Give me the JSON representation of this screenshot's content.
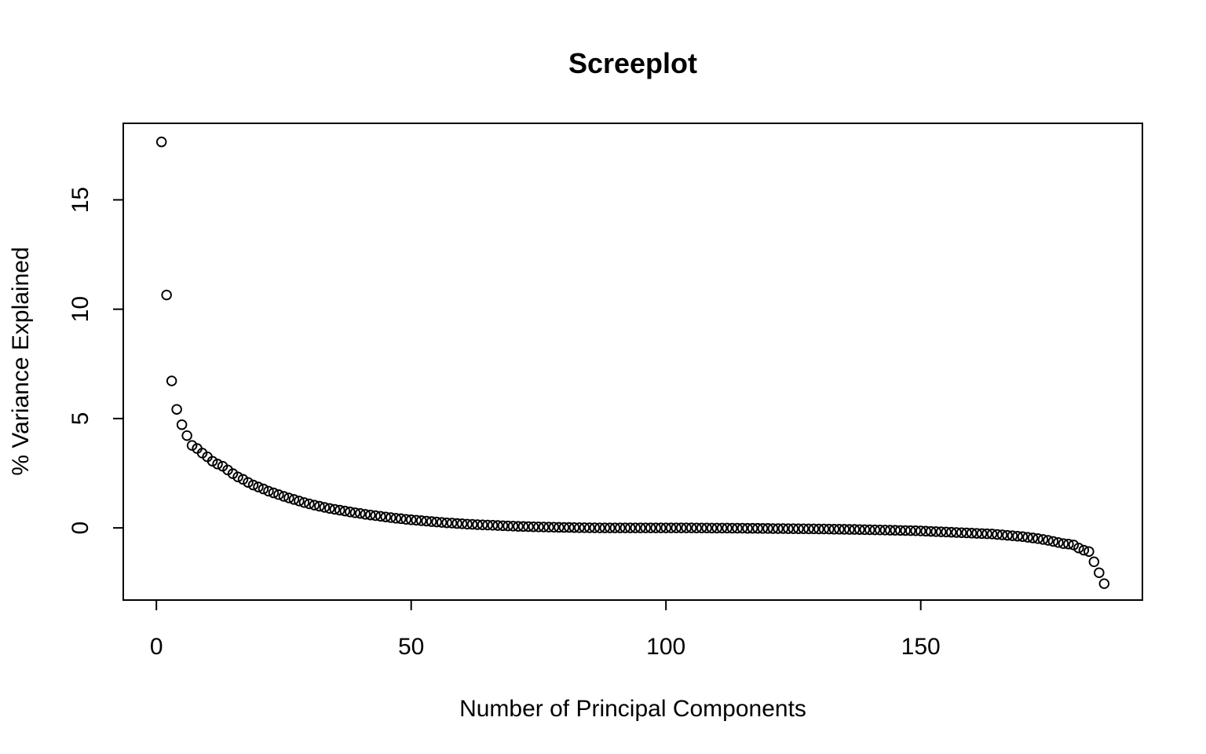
{
  "chart_data": {
    "type": "scatter",
    "title": "Screeplot",
    "xlabel": "Number of Principal Components",
    "ylabel": "% Variance Explained",
    "xlim": [
      -6.5,
      193.5
    ],
    "ylim": [
      -3.3,
      18.5
    ],
    "xticks": [
      0,
      50,
      100,
      150
    ],
    "yticks": [
      0,
      5,
      10,
      15
    ],
    "grid": false,
    "legend": "none",
    "marker": "open-circle",
    "color": "#000000",
    "series": [
      {
        "x": [
          1,
          2,
          3,
          4,
          5,
          6,
          7,
          8,
          9,
          10,
          11,
          12,
          13,
          14,
          15,
          16,
          17,
          18,
          19,
          20,
          21,
          22,
          23,
          24,
          25,
          26,
          27,
          28,
          29,
          30,
          31,
          32,
          33,
          34,
          35,
          36,
          37,
          38,
          39,
          40,
          41,
          42,
          43,
          44,
          45,
          46,
          47,
          48,
          49,
          50,
          51,
          52,
          53,
          54,
          55,
          56,
          57,
          58,
          59,
          60,
          61,
          62,
          63,
          64,
          65,
          66,
          67,
          68,
          69,
          70,
          71,
          72,
          73,
          74,
          75,
          76,
          77,
          78,
          79,
          80,
          81,
          82,
          83,
          84,
          85,
          86,
          87,
          88,
          89,
          90,
          91,
          92,
          93,
          94,
          95,
          96,
          97,
          98,
          99,
          100,
          101,
          102,
          103,
          104,
          105,
          106,
          107,
          108,
          109,
          110,
          111,
          112,
          113,
          114,
          115,
          116,
          117,
          118,
          119,
          120,
          121,
          122,
          123,
          124,
          125,
          126,
          127,
          128,
          129,
          130,
          131,
          132,
          133,
          134,
          135,
          136,
          137,
          138,
          139,
          140,
          141,
          142,
          143,
          144,
          145,
          146,
          147,
          148,
          149,
          150,
          151,
          152,
          153,
          154,
          155,
          156,
          157,
          158,
          159,
          160,
          161,
          162,
          163,
          164,
          165,
          166,
          167,
          168,
          169,
          170,
          171,
          172,
          173,
          174,
          175,
          176,
          177,
          178,
          179,
          180,
          181,
          182,
          183,
          184,
          185,
          186
        ],
        "y": [
          17.65,
          10.65,
          6.72,
          5.42,
          4.72,
          4.22,
          3.77,
          3.63,
          3.42,
          3.25,
          3.05,
          2.92,
          2.82,
          2.65,
          2.48,
          2.33,
          2.22,
          2.08,
          1.96,
          1.87,
          1.78,
          1.68,
          1.6,
          1.52,
          1.44,
          1.37,
          1.3,
          1.23,
          1.16,
          1.1,
          1.04,
          0.99,
          0.94,
          0.89,
          0.85,
          0.81,
          0.77,
          0.73,
          0.69,
          0.66,
          0.62,
          0.59,
          0.56,
          0.53,
          0.5,
          0.47,
          0.44,
          0.42,
          0.39,
          0.37,
          0.35,
          0.33,
          0.31,
          0.29,
          0.27,
          0.25,
          0.23,
          0.22,
          0.2,
          0.19,
          0.17,
          0.16,
          0.15,
          0.14,
          0.13,
          0.12,
          0.11,
          0.1,
          0.09,
          0.08,
          0.07,
          0.065,
          0.06,
          0.05,
          0.045,
          0.04,
          0.035,
          0.03,
          0.025,
          0.02,
          0.02,
          0.015,
          0.01,
          0.01,
          0.005,
          0.005,
          0.0,
          0.0,
          0.0,
          0.0,
          0.0,
          0.0,
          0.0,
          0.0,
          0.0,
          0.0,
          0.0,
          0.0,
          0.0,
          0.0,
          0.0,
          0.0,
          0.0,
          0.0,
          0.0,
          -0.005,
          -0.005,
          -0.005,
          -0.01,
          -0.01,
          -0.01,
          -0.01,
          -0.015,
          -0.015,
          -0.015,
          -0.02,
          -0.02,
          -0.02,
          -0.025,
          -0.025,
          -0.03,
          -0.03,
          -0.03,
          -0.035,
          -0.035,
          -0.04,
          -0.04,
          -0.045,
          -0.045,
          -0.05,
          -0.05,
          -0.055,
          -0.06,
          -0.06,
          -0.065,
          -0.07,
          -0.07,
          -0.075,
          -0.08,
          -0.085,
          -0.09,
          -0.095,
          -0.1,
          -0.105,
          -0.11,
          -0.115,
          -0.12,
          -0.125,
          -0.13,
          -0.14,
          -0.15,
          -0.16,
          -0.17,
          -0.18,
          -0.19,
          -0.2,
          -0.21,
          -0.22,
          -0.23,
          -0.24,
          -0.25,
          -0.26,
          -0.27,
          -0.28,
          -0.3,
          -0.32,
          -0.34,
          -0.36,
          -0.38,
          -0.4,
          -0.43,
          -0.46,
          -0.49,
          -0.53,
          -0.57,
          -0.62,
          -0.67,
          -0.72,
          -0.74,
          -0.78,
          -0.92,
          -1.02,
          -1.08,
          -1.55,
          -2.05,
          -2.55
        ]
      }
    ]
  }
}
